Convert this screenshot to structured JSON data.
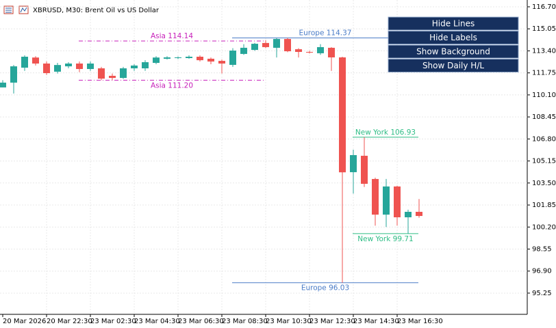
{
  "header": {
    "title": "XBRUSD, M30:  Brent Oil vs US Dollar"
  },
  "buttons": [
    "Hide Lines",
    "Hide Labels",
    "Show Background",
    "Show Daily H/L"
  ],
  "chart_data": {
    "type": "candlestick",
    "up_color": "#26a69a",
    "down_color": "#ef5350",
    "grid": true,
    "ylim": [
      93.66,
      117.21
    ],
    "yticks": [
      {
        "value": 116.7,
        "label": "116.70"
      },
      115.05,
      {
        "value": 113.4,
        "label": "113.40"
      },
      111.75,
      {
        "value": 110.1,
        "label": "110.10"
      },
      108.45,
      {
        "value": 106.8,
        "label": "106.80"
      },
      105.15,
      {
        "value": 103.5,
        "label": "103.50"
      },
      101.85,
      {
        "value": 100.2,
        "label": "100.20"
      },
      98.55,
      {
        "value": 96.9,
        "label": "96.90"
      },
      95.25
    ],
    "categories": [
      "20 Mar 2026",
      null,
      null,
      null,
      "20 Mar 22:30",
      null,
      null,
      null,
      "23 Mar 02:30",
      null,
      null,
      null,
      "23 Mar 04:30",
      null,
      null,
      null,
      "23 Mar 06:30",
      null,
      null,
      null,
      "23 Mar 08:30",
      null,
      null,
      null,
      "23 Mar 10:30",
      null,
      null,
      null,
      "23 Mar 12:30",
      null,
      null,
      null,
      "23 Mar 14:30",
      null,
      null,
      null,
      "23 Mar 16:30",
      null,
      null
    ],
    "open": [
      110.66,
      111.02,
      112.14,
      112.9,
      112.45,
      111.84,
      112.24,
      112.45,
      112.04,
      112.09,
      111.53,
      111.37,
      112.09,
      112.09,
      112.5,
      112.81,
      112.86,
      112.86,
      112.96,
      112.81,
      112.65,
      112.35,
      113.17,
      113.47,
      113.99,
      113.63,
      114.29,
      113.52,
      113.32,
      113.22,
      113.63,
      112.91,
      104.31,
      105.54,
      103.8,
      101.13,
      103.24,
      100.93,
      101.34
    ],
    "high": [
      111.2,
      112.34,
      113.06,
      113.0,
      112.6,
      112.5,
      112.55,
      112.6,
      112.6,
      112.2,
      111.7,
      112.2,
      112.4,
      112.7,
      113.0,
      113.0,
      112.98,
      113.06,
      113.06,
      112.9,
      112.75,
      113.6,
      113.9,
      114.0,
      114.2,
      114.37,
      114.37,
      113.6,
      113.4,
      113.9,
      113.68,
      112.96,
      106.0,
      106.93,
      103.9,
      103.8,
      103.3,
      101.5,
      102.3
    ],
    "low": [
      110.66,
      110.2,
      111.9,
      112.3,
      111.6,
      111.7,
      112.1,
      111.8,
      111.9,
      111.2,
      111.2,
      111.3,
      111.9,
      111.9,
      112.4,
      112.75,
      112.78,
      112.81,
      112.6,
      112.4,
      111.7,
      112.2,
      113.1,
      113.4,
      113.6,
      112.9,
      113.3,
      112.9,
      113.2,
      113.1,
      111.9,
      96.03,
      102.7,
      103.2,
      100.3,
      100.2,
      100.3,
      99.71,
      100.9
    ],
    "close": [
      111.02,
      112.24,
      112.96,
      112.45,
      111.73,
      112.34,
      112.45,
      112.04,
      112.45,
      111.32,
      111.37,
      112.09,
      112.3,
      112.55,
      112.9,
      112.91,
      112.91,
      112.96,
      112.7,
      112.6,
      112.45,
      113.42,
      113.63,
      113.93,
      113.68,
      114.29,
      113.37,
      113.32,
      113.27,
      113.68,
      112.91,
      104.3,
      105.59,
      103.44,
      101.13,
      103.24,
      100.93,
      101.34,
      101.03
    ],
    "sessions": [
      {
        "color": "#c71fb9",
        "style": "dashdot",
        "high": {
          "label": "Asia 114.14",
          "value": 114.14
        },
        "low": {
          "label": "Asia 111.20",
          "value": 111.2
        }
      },
      {
        "color": "#4a7cc7",
        "style": "solid",
        "high": {
          "label": "Europe 114.37",
          "value": 114.37
        },
        "low": {
          "label": "Europe 96.03",
          "value": 96.03
        }
      },
      {
        "color": "#2ebd85",
        "style": "solid",
        "high": {
          "label": "New York 106.93",
          "value": 106.93
        },
        "low": {
          "label": "New York 99.71",
          "value": 99.71
        }
      }
    ]
  }
}
